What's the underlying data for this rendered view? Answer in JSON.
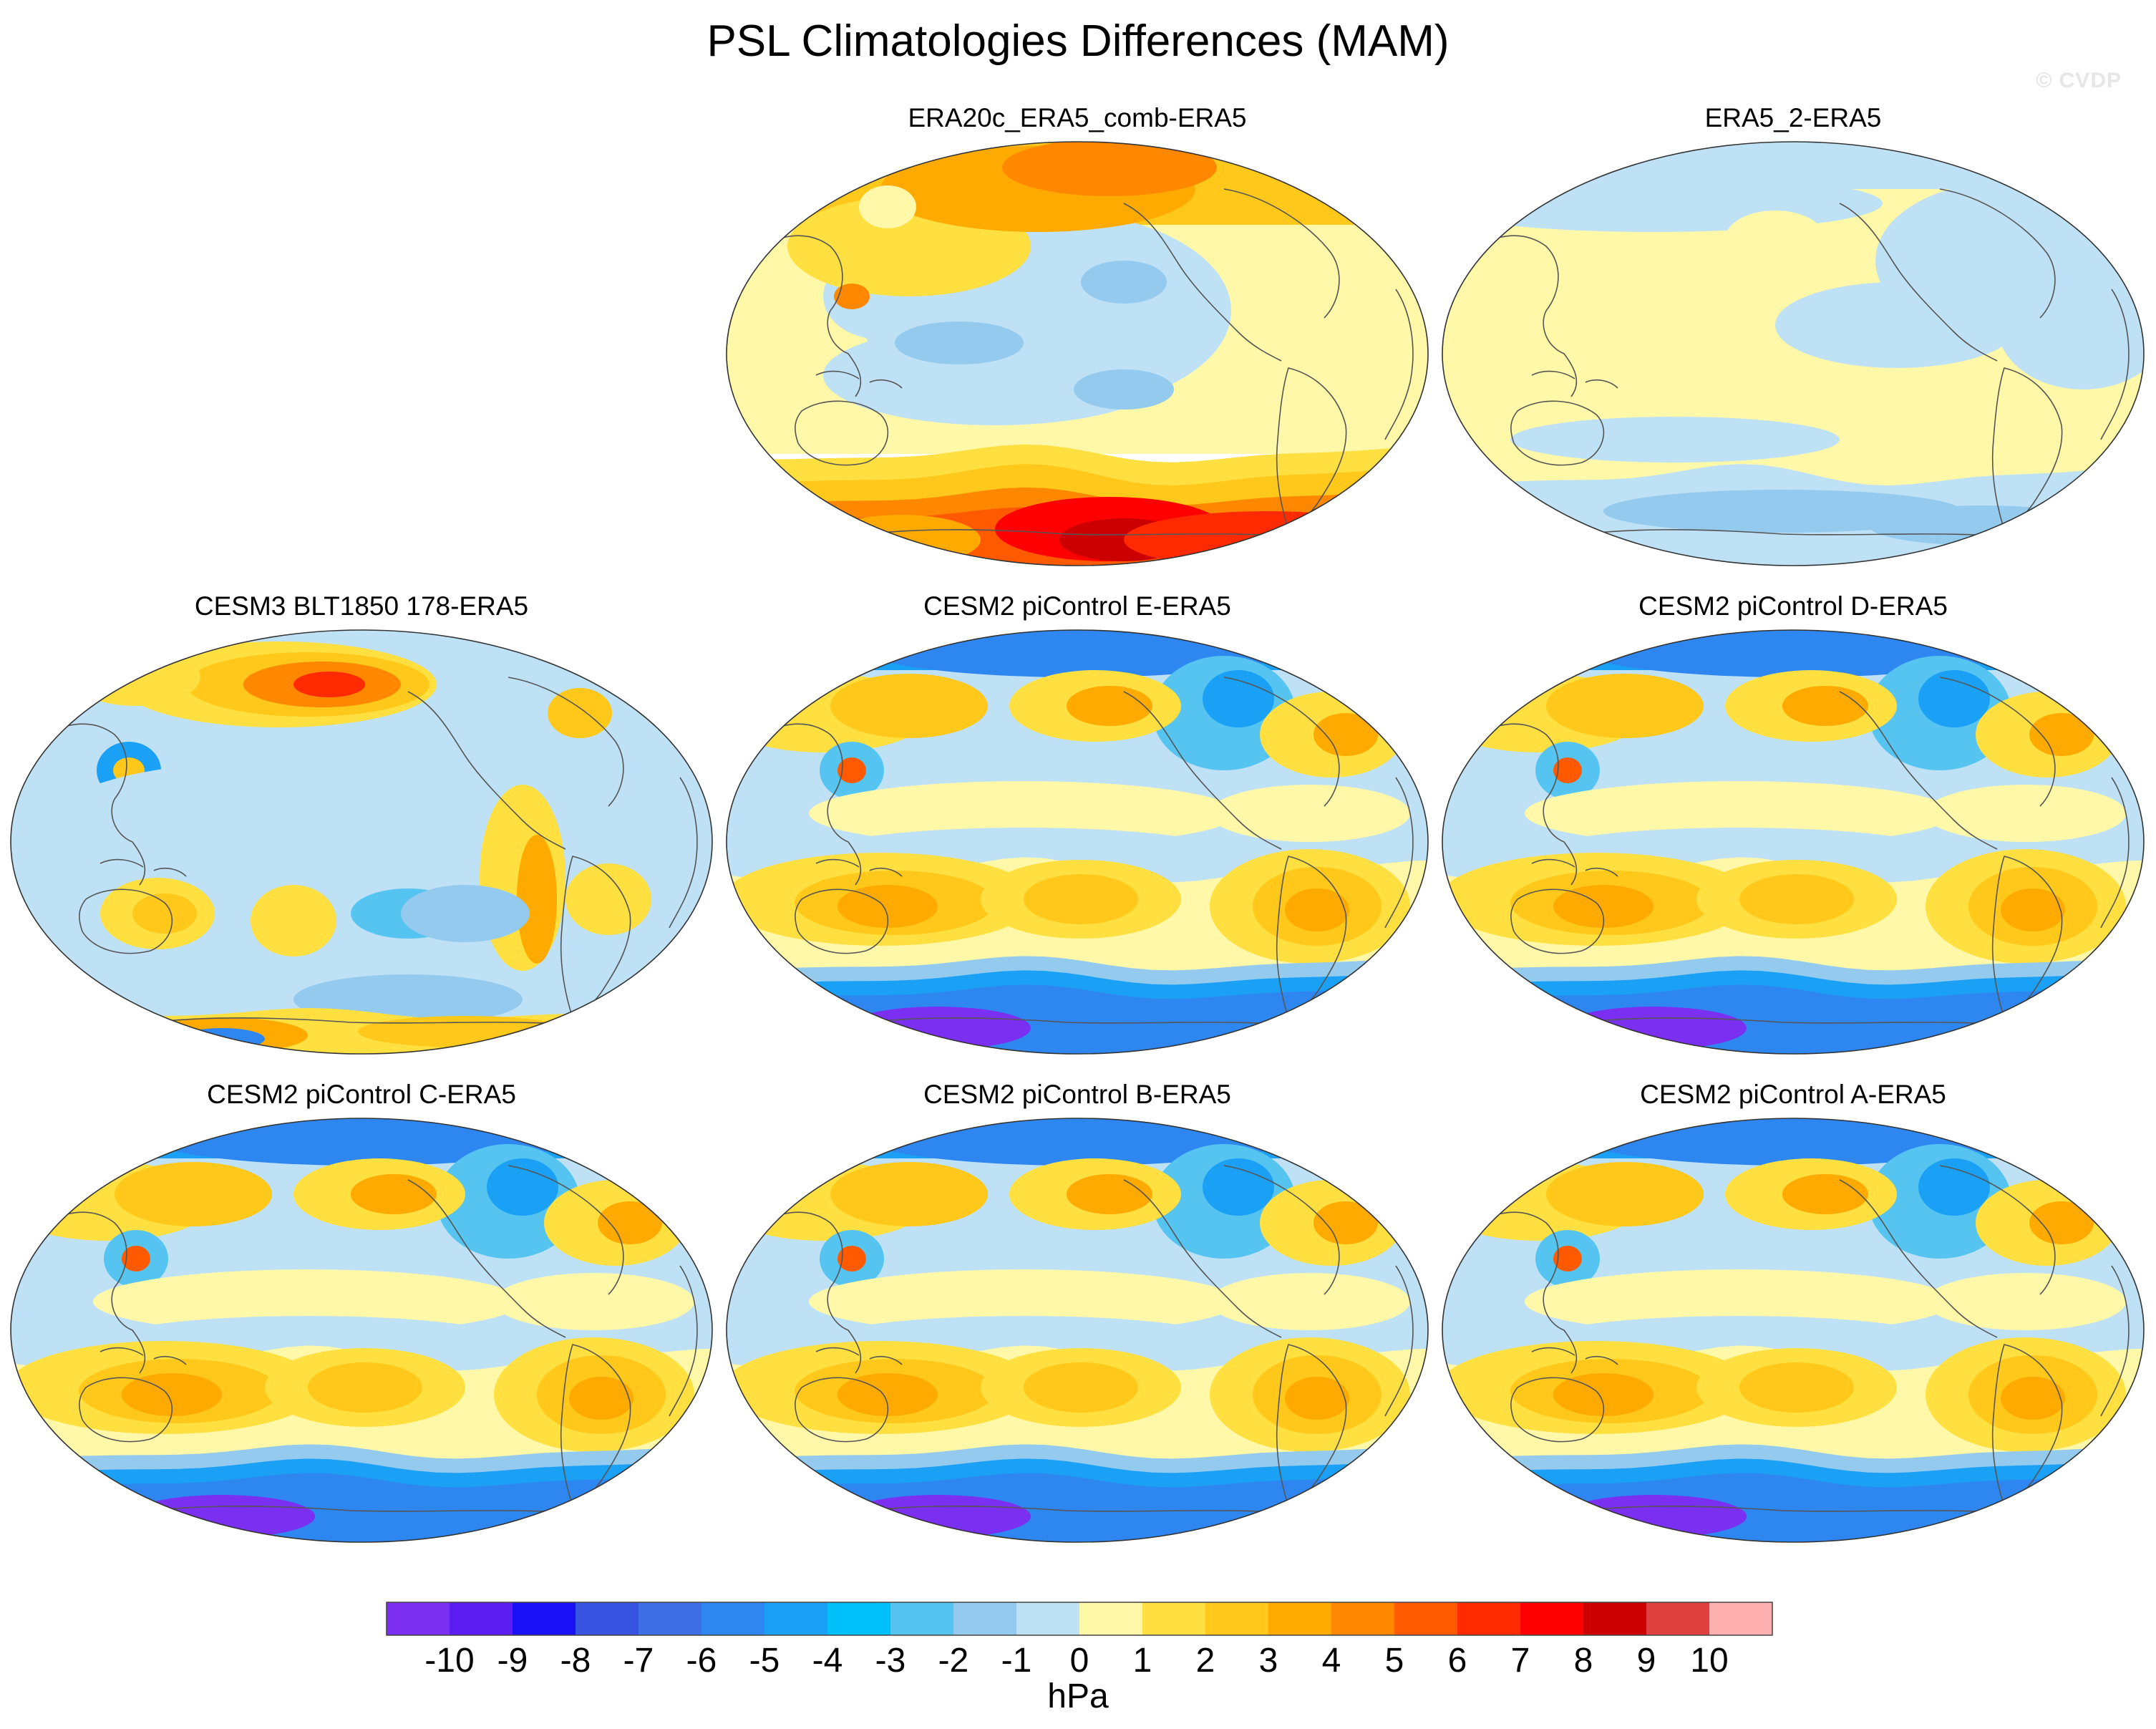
{
  "title": "PSL Climatologies Differences (MAM)",
  "watermark": "© CVDP",
  "units": "hPa",
  "colorbar": {
    "labels": [
      "-10",
      "-9",
      "-8",
      "-7",
      "-6",
      "-5",
      "-4",
      "-3",
      "-2",
      "-1",
      "0",
      "1",
      "2",
      "3",
      "4",
      "5",
      "6",
      "7",
      "8",
      "9",
      "10"
    ],
    "colors": [
      "#7b2ff0",
      "#5a1cf0",
      "#1a10f5",
      "#3654e0",
      "#3f6fe6",
      "#2e86f0",
      "#1aa0f5",
      "#00c0fa",
      "#55c4f0",
      "#93caee",
      "#bfe1f6",
      "#fff8a8",
      "#ffe040",
      "#ffc81a",
      "#ffaa00",
      "#ff8800",
      "#ff5a00",
      "#ff2a00",
      "#ff0000",
      "#cc0000",
      "#e04040",
      "#ffb0b0"
    ]
  },
  "panels": [
    {
      "id": "era20c",
      "title": "ERA20c_ERA5_comb-ERA5",
      "style": "era20c"
    },
    {
      "id": "era5_2",
      "title": "ERA5_2-ERA5",
      "style": "era5_2"
    },
    {
      "id": "cesm3",
      "title": "CESM3 BLT1850 178-ERA5",
      "style": "cesm3"
    },
    {
      "id": "cesm2e",
      "title": "CESM2 piControl E-ERA5",
      "style": "cesm2"
    },
    {
      "id": "cesm2d",
      "title": "CESM2 piControl D-ERA5",
      "style": "cesm2"
    },
    {
      "id": "cesm2c",
      "title": "CESM2 piControl C-ERA5",
      "style": "cesm2"
    },
    {
      "id": "cesm2b",
      "title": "CESM2 piControl B-ERA5",
      "style": "cesm2"
    },
    {
      "id": "cesm2a",
      "title": "CESM2 piControl A-ERA5",
      "style": "cesm2"
    }
  ]
}
